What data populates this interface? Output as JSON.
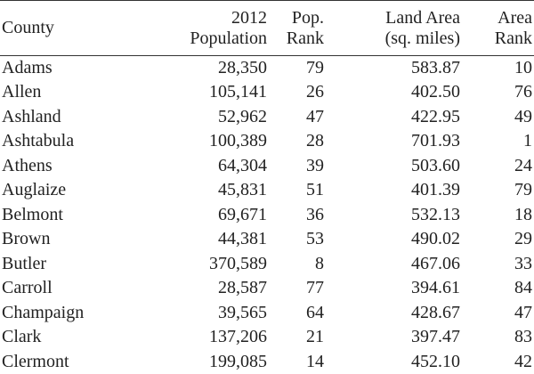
{
  "table": {
    "headers": [
      {
        "lines": [
          "County"
        ]
      },
      {
        "lines": [
          "2012",
          "Population"
        ]
      },
      {
        "lines": [
          "Pop.",
          "Rank"
        ]
      },
      {
        "lines": [
          "Land Area",
          "(sq. miles)"
        ]
      },
      {
        "lines": [
          "Area",
          "Rank"
        ]
      }
    ],
    "rows": [
      {
        "county": "Adams",
        "population": "28,350",
        "pop_rank": "79",
        "land_area": "583.87",
        "area_rank": "10"
      },
      {
        "county": "Allen",
        "population": "105,141",
        "pop_rank": "26",
        "land_area": "402.50",
        "area_rank": "76"
      },
      {
        "county": "Ashland",
        "population": "52,962",
        "pop_rank": "47",
        "land_area": "422.95",
        "area_rank": "49"
      },
      {
        "county": "Ashtabula",
        "population": "100,389",
        "pop_rank": "28",
        "land_area": "701.93",
        "area_rank": "1"
      },
      {
        "county": "Athens",
        "population": "64,304",
        "pop_rank": "39",
        "land_area": "503.60",
        "area_rank": "24"
      },
      {
        "county": "Auglaize",
        "population": "45,831",
        "pop_rank": "51",
        "land_area": "401.39",
        "area_rank": "79"
      },
      {
        "county": "Belmont",
        "population": "69,671",
        "pop_rank": "36",
        "land_area": "532.13",
        "area_rank": "18"
      },
      {
        "county": "Brown",
        "population": "44,381",
        "pop_rank": "53",
        "land_area": "490.02",
        "area_rank": "29"
      },
      {
        "county": "Butler",
        "population": "370,589",
        "pop_rank": "8",
        "land_area": "467.06",
        "area_rank": "33"
      },
      {
        "county": "Carroll",
        "population": "28,587",
        "pop_rank": "77",
        "land_area": "394.61",
        "area_rank": "84"
      },
      {
        "county": "Champaign",
        "population": "39,565",
        "pop_rank": "64",
        "land_area": "428.67",
        "area_rank": "47"
      },
      {
        "county": "Clark",
        "population": "137,206",
        "pop_rank": "21",
        "land_area": "397.47",
        "area_rank": "83"
      },
      {
        "county": "Clermont",
        "population": "199,085",
        "pop_rank": "14",
        "land_area": "452.10",
        "area_rank": "42"
      }
    ]
  }
}
